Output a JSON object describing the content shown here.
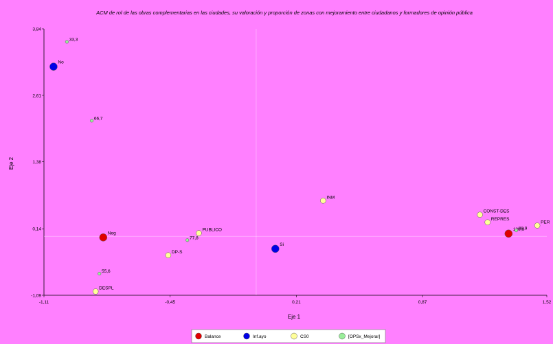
{
  "chart_data": {
    "type": "scatter",
    "title": "ACM de rol de las obras complementarias en las ciudades, su valoración y proporción de zonas  con mejoramiento  entre ciudadanos y formadores de opinión pública",
    "xlabel": "Eje 1",
    "ylabel": "Eje 2",
    "xlim": [
      -1.11,
      1.52
    ],
    "ylim": [
      -1.09,
      3.84
    ],
    "xticks": [
      -1.11,
      -0.45,
      0.21,
      0.87,
      1.52
    ],
    "xtick_labels": [
      "-1,11",
      "-0,45",
      "0,21",
      "0,87",
      "1,52"
    ],
    "yticks": [
      -1.09,
      0.14,
      1.38,
      2.61,
      3.84
    ],
    "ytick_labels": [
      "-1,09",
      "0,14",
      "1,38",
      "2,61",
      "3,84"
    ],
    "origin_lines": {
      "x": 0.0,
      "y": 0.0
    },
    "background": "#ff80ff",
    "legend_position": "bottom",
    "series": [
      {
        "name": "Balance",
        "color": "#e00000",
        "size": "large",
        "points": [
          {
            "label": "Neg",
            "x": -0.8,
            "y": -0.02
          },
          {
            "label": "120,0",
            "x": 1.32,
            "y": 0.05
          }
        ]
      },
      {
        "name": "Inf.ayo",
        "color": "#0000e6",
        "size": "large",
        "points": [
          {
            "label": "No",
            "x": -1.06,
            "y": 3.14
          },
          {
            "label": "Si",
            "x": 0.1,
            "y": -0.23
          }
        ]
      },
      {
        "name": "CS0",
        "color": "#ffff99",
        "size": "medium",
        "points": [
          {
            "label": "DESPL",
            "x": -0.84,
            "y": -1.02
          },
          {
            "label": "DP-S",
            "x": -0.46,
            "y": -0.35
          },
          {
            "label": "PUBLICO",
            "x": -0.3,
            "y": 0.06
          },
          {
            "label": "INM",
            "x": 0.35,
            "y": 0.66
          },
          {
            "label": "CONST-DES",
            "x": 1.17,
            "y": 0.4
          },
          {
            "label": "REPRES",
            "x": 1.21,
            "y": 0.26
          },
          {
            "label": "PER",
            "x": 1.47,
            "y": 0.2
          }
        ]
      },
      {
        "name": "[OPSx_Mejorar]",
        "color": "#99ee99",
        "size": "small",
        "points": [
          {
            "label": "33,3",
            "x": -0.99,
            "y": 3.6
          },
          {
            "label": "66,7",
            "x": -0.86,
            "y": 2.14
          },
          {
            "label": "77,8",
            "x": -0.36,
            "y": -0.07
          },
          {
            "label": "55,6",
            "x": -0.82,
            "y": -0.69
          },
          {
            "label": "88,9",
            "x": 1.36,
            "y": 0.11
          }
        ]
      }
    ]
  }
}
